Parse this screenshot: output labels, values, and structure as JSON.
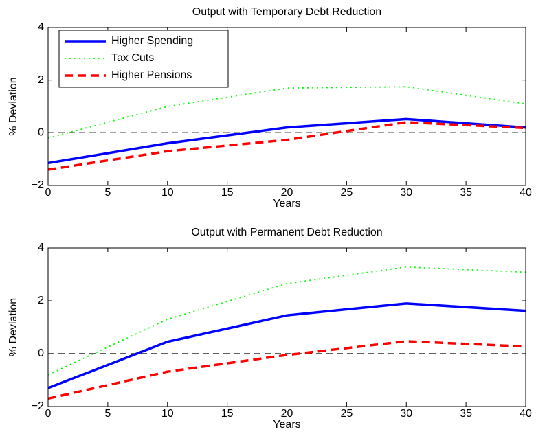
{
  "chart_data": [
    {
      "type": "line",
      "title": "Output with Temporary Debt Reduction",
      "x_label": "Years",
      "y_label": "% Deviation",
      "x": [
        0,
        10,
        20,
        30,
        40
      ],
      "series": [
        {
          "name": "Higher Spending",
          "color": "#0000ff",
          "style": "solid",
          "values": [
            -1.15,
            -0.4,
            0.2,
            0.52,
            0.2
          ]
        },
        {
          "name": "Tax Cuts",
          "color": "#00ff00",
          "style": "dotted",
          "values": [
            -0.2,
            1.0,
            1.7,
            1.75,
            1.1
          ]
        },
        {
          "name": "Higher Pensions",
          "color": "#ff0000",
          "style": "dashed",
          "values": [
            -1.4,
            -0.7,
            -0.27,
            0.4,
            0.18
          ]
        }
      ],
      "reference_line": 0,
      "xlim": [
        0,
        40
      ],
      "xticks": [
        0,
        5,
        10,
        15,
        20,
        25,
        30,
        35,
        40
      ],
      "ylim": [
        -2,
        4
      ],
      "yticks": [
        {
          "value": -2,
          "label": "−2"
        },
        0,
        2,
        4
      ],
      "legend": "upper left"
    },
    {
      "type": "line",
      "title": "Output with Permanent Debt Reduction",
      "x_label": "Years",
      "y_label": "% Deviation",
      "x": [
        0,
        10,
        20,
        30,
        40
      ],
      "series": [
        {
          "color": "#0000ff",
          "style": "solid",
          "values": [
            -1.3,
            0.45,
            1.45,
            1.9,
            1.62
          ]
        },
        {
          "color": "#00ff00",
          "style": "dotted",
          "values": [
            -0.8,
            1.3,
            2.65,
            3.28,
            3.08
          ]
        },
        {
          "color": "#ff0000",
          "style": "dashed",
          "values": [
            -1.7,
            -0.68,
            -0.05,
            0.47,
            0.27
          ]
        }
      ],
      "reference_line": 0,
      "xlim": [
        0,
        40
      ],
      "xticks": [
        0,
        5,
        10,
        15,
        20,
        25,
        30,
        35,
        40
      ],
      "ylim": [
        -2,
        4
      ],
      "yticks": [
        {
          "value": -2,
          "label": "−2"
        },
        0,
        2,
        4
      ]
    }
  ]
}
